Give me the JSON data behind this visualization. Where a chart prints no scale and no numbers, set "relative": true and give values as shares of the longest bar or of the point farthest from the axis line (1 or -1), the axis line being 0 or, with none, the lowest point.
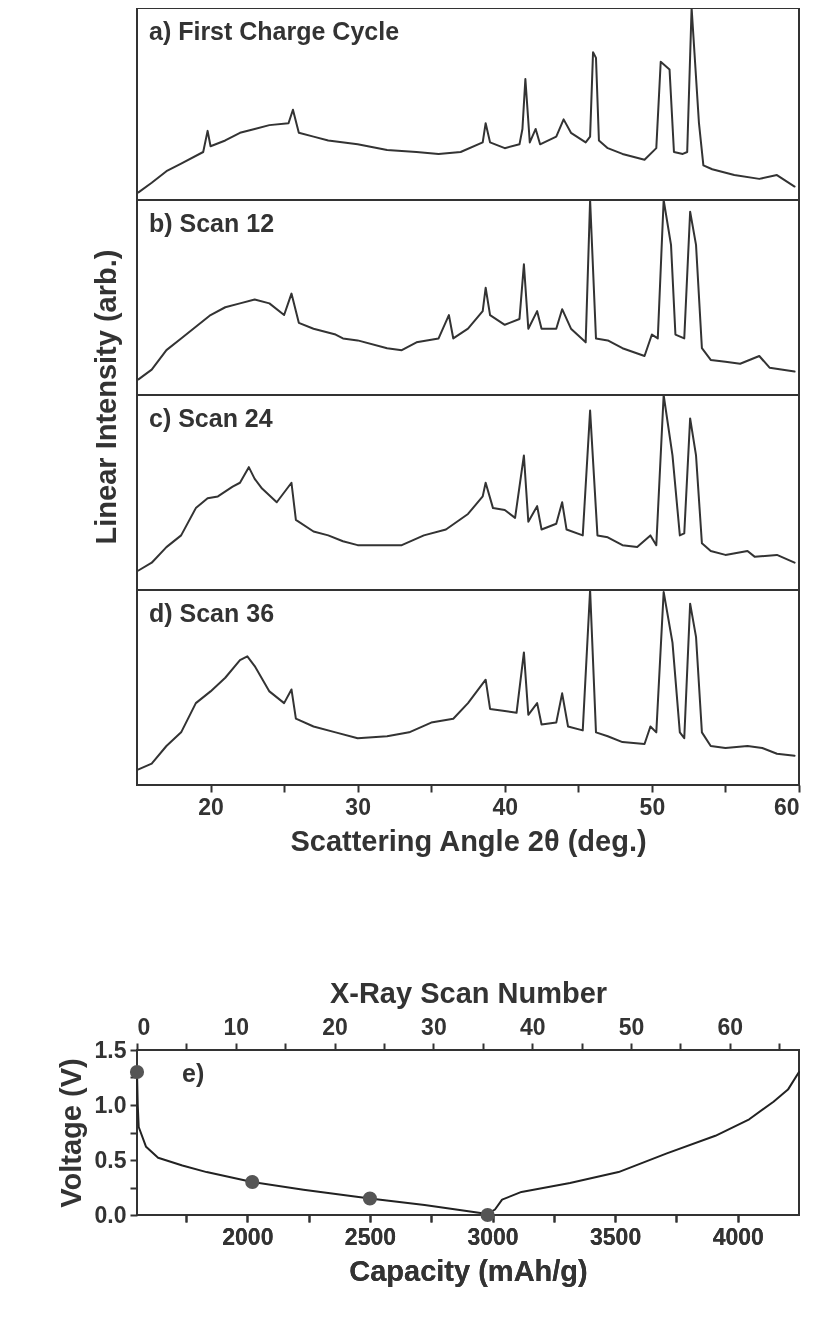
{
  "chart_data": [
    {
      "type": "line",
      "relative": true,
      "ylabel": "Linear Intensity (arb.)",
      "annotations": [
        "a) First Charge Cycle"
      ],
      "color": "#333333",
      "xlim": [
        15,
        60
      ],
      "xticks": [
        20,
        {
          "value": 25,
          "label": null
        },
        30,
        {
          "value": 35,
          "label": null
        },
        40,
        {
          "value": 45,
          "label": null
        },
        50,
        {
          "value": 55,
          "label": null
        },
        60
      ],
      "tick_labels": false,
      "x": [
        15.1,
        16,
        17,
        18,
        19.5,
        19.8,
        20,
        21,
        22,
        23,
        24,
        25.3,
        25.6,
        26,
        27,
        28,
        30,
        32,
        34,
        35.5,
        37,
        38.5,
        38.7,
        39,
        40,
        41,
        41.2,
        41.4,
        41.7,
        42.1,
        42.4,
        43.5,
        44,
        44.5,
        45.5,
        45.8,
        46,
        46.2,
        46.4,
        47,
        48,
        49.5,
        50.3,
        50.6,
        51.2,
        51.5,
        52.1,
        52.4,
        52.7,
        53.2,
        53.5,
        54.1,
        55.6,
        57.3,
        58.5,
        59.7
      ],
      "values": [
        0.04,
        0.09,
        0.15,
        0.19,
        0.25,
        0.36,
        0.28,
        0.31,
        0.35,
        0.37,
        0.39,
        0.4,
        0.47,
        0.35,
        0.33,
        0.31,
        0.29,
        0.26,
        0.25,
        0.24,
        0.25,
        0.3,
        0.4,
        0.3,
        0.27,
        0.29,
        0.37,
        0.63,
        0.3,
        0.37,
        0.29,
        0.33,
        0.42,
        0.35,
        0.3,
        0.33,
        0.77,
        0.74,
        0.31,
        0.27,
        0.24,
        0.21,
        0.27,
        0.72,
        0.68,
        0.25,
        0.24,
        0.25,
        1.0,
        0.4,
        0.18,
        0.16,
        0.13,
        0.11,
        0.13,
        0.07
      ]
    },
    {
      "type": "line",
      "relative": true,
      "annotations": [
        "b) Scan 12"
      ],
      "color": "#333333",
      "xlim": [
        15,
        60
      ],
      "xticks": [
        20,
        {
          "value": 25,
          "label": null
        },
        30,
        {
          "value": 35,
          "label": null
        },
        40,
        {
          "value": 45,
          "label": null
        },
        50,
        {
          "value": 55,
          "label": null
        },
        60
      ],
      "tick_labels": false,
      "x": [
        15.1,
        16,
        17,
        18,
        19,
        20,
        21,
        22,
        23,
        24,
        25,
        25.5,
        26,
        27,
        28.5,
        29,
        30,
        32,
        33,
        34,
        35.5,
        36.2,
        36.5,
        37.5,
        38.5,
        38.7,
        39,
        40,
        41,
        41.3,
        41.6,
        42.2,
        42.5,
        43.5,
        43.9,
        44.5,
        45.5,
        45.8,
        46.2,
        47,
        48,
        49.5,
        50,
        50.4,
        50.8,
        51.3,
        51.6,
        52.2,
        52.6,
        53,
        53.4,
        54,
        55,
        56,
        57.3,
        58,
        59.7
      ],
      "values": [
        0.08,
        0.13,
        0.23,
        0.29,
        0.35,
        0.41,
        0.45,
        0.47,
        0.49,
        0.47,
        0.41,
        0.52,
        0.37,
        0.34,
        0.31,
        0.29,
        0.28,
        0.24,
        0.23,
        0.27,
        0.29,
        0.41,
        0.29,
        0.34,
        0.43,
        0.55,
        0.41,
        0.36,
        0.39,
        0.67,
        0.34,
        0.43,
        0.34,
        0.34,
        0.44,
        0.34,
        0.27,
        1.0,
        0.29,
        0.28,
        0.24,
        0.2,
        0.31,
        0.29,
        1.0,
        0.77,
        0.31,
        0.29,
        0.94,
        0.77,
        0.24,
        0.18,
        0.17,
        0.16,
        0.2,
        0.14,
        0.12
      ]
    },
    {
      "type": "line",
      "relative": true,
      "annotations": [
        "c) Scan 24"
      ],
      "color": "#333333",
      "xlim": [
        15,
        60
      ],
      "xticks": [
        20,
        {
          "value": 25,
          "label": null
        },
        30,
        {
          "value": 35,
          "label": null
        },
        40,
        {
          "value": 45,
          "label": null
        },
        50,
        {
          "value": 55,
          "label": null
        },
        60
      ],
      "tick_labels": false,
      "x": [
        15.1,
        16,
        17,
        18,
        19,
        19.8,
        20.5,
        21.5,
        22,
        22.6,
        23,
        23.5,
        24.5,
        25.5,
        25.8,
        27,
        28,
        29,
        30,
        32,
        33,
        34.5,
        36,
        37.5,
        38.5,
        38.7,
        39.2,
        40,
        40.7,
        41.3,
        41.6,
        42.2,
        42.5,
        43.5,
        43.9,
        44.2,
        45.3,
        45.8,
        46.3,
        47,
        48,
        49,
        49.9,
        50.3,
        50.8,
        51.4,
        51.9,
        52.2,
        52.6,
        53,
        53.4,
        54,
        55,
        56.5,
        57,
        58.5,
        59.7
      ],
      "values": [
        0.1,
        0.14,
        0.22,
        0.28,
        0.42,
        0.47,
        0.48,
        0.53,
        0.55,
        0.63,
        0.57,
        0.52,
        0.45,
        0.55,
        0.36,
        0.3,
        0.28,
        0.25,
        0.23,
        0.23,
        0.23,
        0.28,
        0.31,
        0.39,
        0.48,
        0.55,
        0.42,
        0.41,
        0.37,
        0.69,
        0.35,
        0.43,
        0.31,
        0.34,
        0.45,
        0.31,
        0.28,
        0.92,
        0.28,
        0.27,
        0.23,
        0.22,
        0.28,
        0.23,
        1.0,
        0.69,
        0.28,
        0.29,
        0.88,
        0.69,
        0.24,
        0.2,
        0.18,
        0.2,
        0.17,
        0.18,
        0.14
      ]
    },
    {
      "type": "line",
      "relative": true,
      "xlabel": "Scattering Angle 2θ (deg.)",
      "annotations": [
        "d) Scan 36"
      ],
      "color": "#333333",
      "xlim": [
        15,
        60
      ],
      "xticks": [
        20,
        {
          "value": 25,
          "label": null
        },
        30,
        {
          "value": 35,
          "label": null
        },
        40,
        {
          "value": 45,
          "label": null
        },
        50,
        {
          "value": 55,
          "label": null
        },
        60
      ],
      "tick_labels": "x",
      "x": [
        15.1,
        16,
        17,
        18,
        19,
        20,
        21,
        22,
        22.5,
        23,
        24,
        25,
        25.5,
        25.8,
        27,
        28.5,
        30,
        32,
        33.5,
        35,
        36.5,
        37.5,
        38.7,
        39,
        40,
        40.8,
        41.3,
        41.6,
        42.2,
        42.5,
        43.5,
        43.9,
        44.3,
        45.3,
        45.8,
        46.2,
        47,
        48,
        49.5,
        49.9,
        50.3,
        50.8,
        51.4,
        51.9,
        52.2,
        52.6,
        53,
        53.4,
        54,
        55,
        56.5,
        57.5,
        58.5,
        59.7
      ],
      "values": [
        0.08,
        0.11,
        0.2,
        0.27,
        0.42,
        0.48,
        0.55,
        0.64,
        0.66,
        0.61,
        0.48,
        0.42,
        0.49,
        0.34,
        0.3,
        0.27,
        0.24,
        0.25,
        0.27,
        0.32,
        0.34,
        0.42,
        0.54,
        0.39,
        0.38,
        0.37,
        0.68,
        0.36,
        0.42,
        0.31,
        0.32,
        0.47,
        0.3,
        0.28,
        1.0,
        0.27,
        0.25,
        0.22,
        0.21,
        0.3,
        0.27,
        0.99,
        0.73,
        0.27,
        0.24,
        0.93,
        0.76,
        0.27,
        0.2,
        0.19,
        0.2,
        0.19,
        0.16,
        0.15
      ]
    },
    {
      "type": "line",
      "xlabel": "Capacity (mAh/g)",
      "ylabel": "Voltage (V)",
      "x2label": "X-Ray Scan Number",
      "annotations": [
        "e)"
      ],
      "xlim": [
        1550,
        4250
      ],
      "xticks": [
        {
          "value": 1750,
          "label": null
        },
        2000,
        {
          "value": 2250,
          "label": null
        },
        2500,
        {
          "value": 2750,
          "label": null
        },
        3000,
        {
          "value": 3250,
          "label": null
        },
        3500,
        {
          "value": 3750,
          "label": null
        },
        4000
      ],
      "x2lim": [
        0,
        67
      ],
      "x2ticks": [
        0,
        {
          "value": 5,
          "label": null
        },
        10,
        {
          "value": 15,
          "label": null
        },
        20,
        {
          "value": 25,
          "label": null
        },
        30,
        {
          "value": 35,
          "label": null
        },
        40,
        {
          "value": 45,
          "label": null
        },
        50,
        {
          "value": 55,
          "label": null
        },
        60,
        {
          "value": 65,
          "label": null
        }
      ],
      "ylim": [
        0,
        1.5
      ],
      "yticks": [
        {
          "value": 0,
          "label": "0.0"
        },
        {
          "value": 0.25,
          "label": null
        },
        {
          "value": 0.5,
          "label": "0.5"
        },
        {
          "value": 0.75,
          "label": null
        },
        {
          "value": 1,
          "label": "1.0"
        },
        {
          "value": 1.25,
          "label": null
        },
        {
          "value": 1.5,
          "label": "1.5"
        }
      ],
      "series": [
        {
          "type": "line",
          "color": "#222222",
          "x": [
            1550,
            1553,
            1557,
            1587,
            1636,
            1735,
            1834,
            2020,
            2229,
            2500,
            2723,
            2980,
            3010,
            3039,
            3118,
            3316,
            3514,
            3711,
            3909,
            4047,
            4146,
            4205,
            4250
          ],
          "values": [
            1.3,
            1.0,
            0.8,
            0.62,
            0.52,
            0.45,
            0.39,
            0.3,
            0.23,
            0.15,
            0.09,
            0.01,
            0.05,
            0.14,
            0.21,
            0.29,
            0.39,
            0.56,
            0.72,
            0.87,
            1.03,
            1.14,
            1.3
          ]
        },
        {
          "type": "scatter",
          "marker": "circle",
          "color": "#555555",
          "x": [
            1550,
            2020,
            2500,
            2980
          ],
          "values": [
            1.3,
            0.3,
            0.15,
            0.0
          ]
        }
      ]
    }
  ]
}
